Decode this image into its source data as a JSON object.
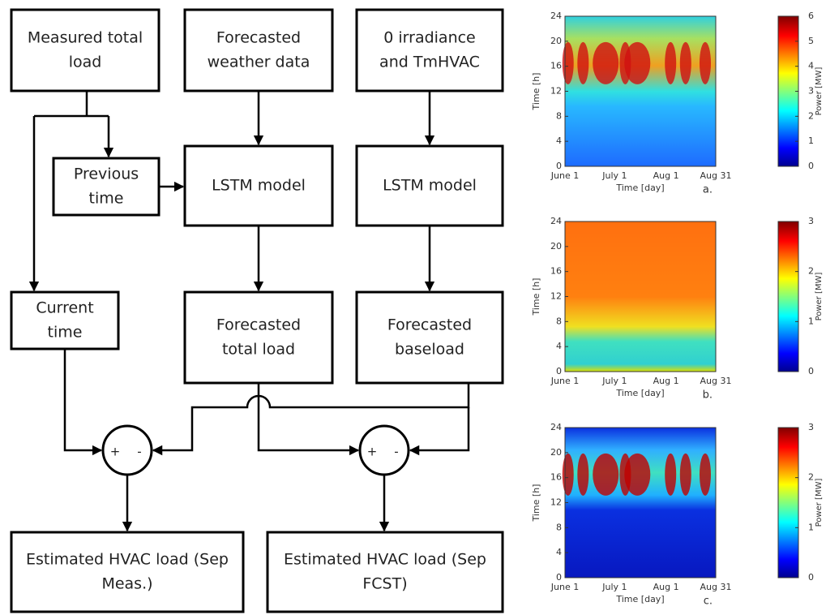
{
  "diagram": {
    "nodes": [
      {
        "lines": [
          "Measured total",
          "load"
        ]
      },
      {
        "lines": [
          "Forecasted",
          "weather data"
        ]
      },
      {
        "lines": [
          "0 irradiance",
          "and TmHVAC"
        ]
      },
      {
        "lines": [
          "Previous",
          "time"
        ]
      },
      {
        "lines": [
          "LSTM model"
        ]
      },
      {
        "lines": [
          "LSTM model"
        ]
      },
      {
        "lines": [
          "Current",
          "time"
        ]
      },
      {
        "lines": [
          "Forecasted",
          "total load"
        ]
      },
      {
        "lines": [
          "Forecasted",
          "baseload"
        ]
      },
      {
        "lines": [
          "Estimated HVAC load (Sep",
          "Meas.)"
        ]
      },
      {
        "lines": [
          "Estimated HVAC load (Sep",
          "FCST)"
        ]
      }
    ],
    "sum_nodes": [
      {
        "plus": "+",
        "minus": "-"
      },
      {
        "plus": "+",
        "minus": "-"
      }
    ]
  },
  "heatmaps": [
    {
      "panel_label": "a.",
      "ylabel": "Time [h]",
      "xlabel": "Time [day]",
      "colorbar_label": "Power [MW]",
      "ylim": [
        0,
        24
      ],
      "yticks": [
        0,
        4,
        8,
        12,
        16,
        20,
        24
      ],
      "xtick_labels": [
        "June 1",
        "July 1",
        "Aug 1",
        "Aug 31"
      ],
      "clim": [
        0,
        6
      ],
      "cticks": [
        0,
        1,
        2,
        3,
        4,
        5,
        6
      ]
    },
    {
      "panel_label": "b.",
      "ylabel": "Time [h]",
      "xlabel": "Time [day]",
      "colorbar_label": "Power [MW]",
      "ylim": [
        0,
        24
      ],
      "yticks": [
        0,
        4,
        8,
        12,
        16,
        20,
        24
      ],
      "xtick_labels": [
        "June 1",
        "July 1",
        "Aug 1",
        "Aug 31"
      ],
      "clim": [
        0,
        3
      ],
      "cticks": [
        0,
        1,
        2,
        3
      ]
    },
    {
      "panel_label": "c.",
      "ylabel": "Time [h]",
      "xlabel": "Time [day]",
      "colorbar_label": "Power [MW]",
      "ylim": [
        0,
        24
      ],
      "yticks": [
        0,
        4,
        8,
        12,
        16,
        20,
        24
      ],
      "xtick_labels": [
        "June 1",
        "July 1",
        "Aug 1",
        "Aug 31"
      ],
      "clim": [
        0,
        3
      ],
      "cticks": [
        0,
        1,
        2,
        3
      ]
    }
  ]
}
